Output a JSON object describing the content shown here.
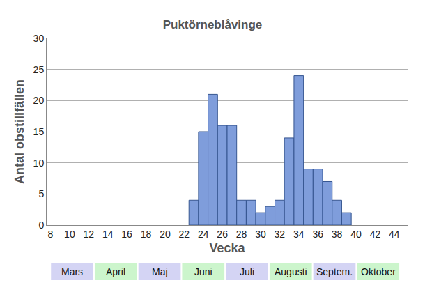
{
  "chart_data": {
    "type": "bar",
    "title": "Puktörneblåvinge",
    "x_label": "Vecka",
    "y_label": "Antal obstillfällen",
    "x": [
      23,
      24,
      25,
      26,
      27,
      28,
      29,
      30,
      31,
      32,
      33,
      34,
      35,
      36,
      37,
      38,
      39
    ],
    "values": [
      4,
      15,
      21,
      16,
      16,
      4,
      4,
      2,
      3,
      4,
      14,
      24,
      9,
      9,
      7,
      4,
      2
    ],
    "color": "#7f9ddb",
    "xlim": [
      7.6,
      45.4
    ],
    "xticks": [
      8,
      10,
      12,
      14,
      16,
      18,
      20,
      22,
      24,
      26,
      28,
      30,
      32,
      34,
      36,
      38,
      40,
      42,
      44
    ],
    "ylim": [
      0,
      30
    ],
    "yticks": [
      0,
      5,
      10,
      15,
      20,
      25,
      30
    ],
    "grid": true,
    "annotations": [
      "Mars",
      "April",
      "Maj",
      "Juni",
      "Juli",
      "Augusti",
      "Septem.",
      "Oktober"
    ]
  }
}
